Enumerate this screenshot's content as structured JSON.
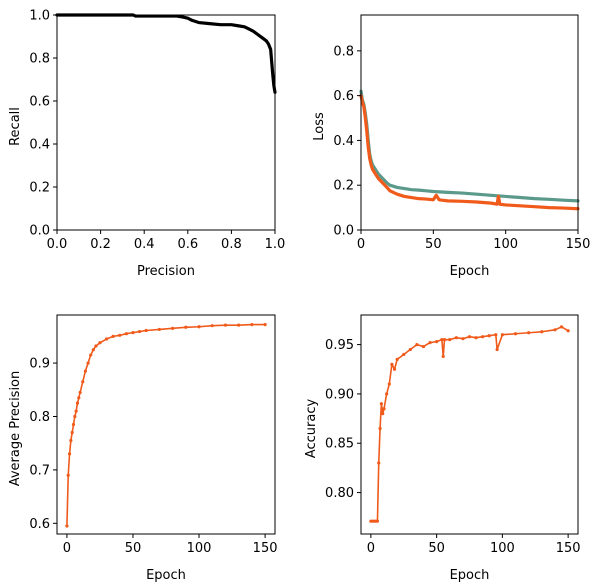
{
  "chart_data": [
    {
      "type": "line",
      "xlabel": "Precision",
      "ylabel": "Recall",
      "xlim": [
        0,
        1
      ],
      "ylim": [
        0,
        1
      ],
      "xticks": [
        0.0,
        0.2,
        0.4,
        0.6,
        0.8,
        1.0
      ],
      "yticks": [
        0.0,
        0.2,
        0.4,
        0.6,
        0.8,
        1.0
      ],
      "xtick_labels": [
        "0.0",
        "0.2",
        "0.4",
        "0.6",
        "0.8",
        "1.0"
      ],
      "ytick_labels": [
        "0.0",
        "0.2",
        "0.4",
        "0.6",
        "0.8",
        "1.0"
      ],
      "grid": false,
      "series": [
        {
          "color": "#000000",
          "x": [
            0.0,
            0.05,
            0.1,
            0.15,
            0.2,
            0.25,
            0.3,
            0.35,
            0.36,
            0.4,
            0.45,
            0.5,
            0.55,
            0.58,
            0.6,
            0.62,
            0.65,
            0.7,
            0.75,
            0.8,
            0.83,
            0.86,
            0.88,
            0.9,
            0.92,
            0.94,
            0.96,
            0.97,
            0.98,
            0.985,
            0.99,
            0.995,
            1.0
          ],
          "y": [
            1.0,
            1.0,
            1.0,
            1.0,
            1.0,
            1.0,
            1.0,
            1.0,
            0.995,
            0.995,
            0.995,
            0.995,
            0.995,
            0.99,
            0.985,
            0.975,
            0.965,
            0.96,
            0.955,
            0.955,
            0.95,
            0.945,
            0.935,
            0.925,
            0.91,
            0.895,
            0.88,
            0.865,
            0.84,
            0.78,
            0.72,
            0.67,
            0.64
          ]
        }
      ]
    },
    {
      "type": "line",
      "xlabel": "Epoch",
      "ylabel": "Loss",
      "xlim": [
        0,
        150
      ],
      "ylim": [
        0,
        0.96
      ],
      "xticks": [
        0,
        50,
        100,
        150
      ],
      "yticks": [
        0.0,
        0.2,
        0.4,
        0.6,
        0.8
      ],
      "xtick_labels": [
        "0",
        "50",
        "100",
        "150"
      ],
      "ytick_labels": [
        "0.0",
        "0.2",
        "0.4",
        "0.6",
        "0.8"
      ],
      "grid": false,
      "series": [
        {
          "color": "#5b9a8b",
          "x": [
            0,
            1,
            2,
            3,
            4,
            5,
            6,
            7,
            8,
            10,
            12,
            15,
            18,
            20,
            25,
            30,
            35,
            40,
            45,
            50,
            60,
            70,
            80,
            90,
            100,
            110,
            120,
            130,
            140,
            150
          ],
          "y": [
            0.62,
            0.58,
            0.56,
            0.52,
            0.47,
            0.4,
            0.34,
            0.31,
            0.29,
            0.27,
            0.25,
            0.23,
            0.21,
            0.2,
            0.19,
            0.185,
            0.18,
            0.178,
            0.175,
            0.172,
            0.168,
            0.165,
            0.16,
            0.155,
            0.15,
            0.145,
            0.14,
            0.137,
            0.133,
            0.13
          ]
        },
        {
          "color": "#f05a1a",
          "x": [
            0,
            1,
            2,
            3,
            4,
            5,
            6,
            7,
            8,
            10,
            12,
            15,
            18,
            20,
            25,
            30,
            35,
            40,
            45,
            50,
            52,
            54,
            56,
            60,
            70,
            80,
            90,
            94,
            95,
            96,
            100,
            110,
            120,
            130,
            140,
            150
          ],
          "y": [
            0.6,
            0.57,
            0.55,
            0.5,
            0.44,
            0.37,
            0.32,
            0.29,
            0.27,
            0.25,
            0.23,
            0.21,
            0.19,
            0.175,
            0.16,
            0.15,
            0.145,
            0.14,
            0.138,
            0.135,
            0.155,
            0.135,
            0.133,
            0.13,
            0.128,
            0.125,
            0.12,
            0.115,
            0.15,
            0.115,
            0.112,
            0.108,
            0.104,
            0.1,
            0.098,
            0.095
          ]
        }
      ]
    },
    {
      "type": "line",
      "xlabel": "Epoch",
      "ylabel": "Average Precision",
      "xlim": [
        -7.5,
        157.5
      ],
      "ylim": [
        0.58,
        0.99
      ],
      "xticks": [
        0,
        50,
        100,
        150
      ],
      "yticks": [
        0.6,
        0.7,
        0.8,
        0.9
      ],
      "xtick_labels": [
        "0",
        "50",
        "100",
        "150"
      ],
      "ytick_labels": [
        "0.6",
        "0.7",
        "0.8",
        "0.9"
      ],
      "grid": false,
      "series": [
        {
          "color": "#f05a1a",
          "marker": "dot",
          "x": [
            0,
            1,
            2,
            3,
            4,
            5,
            6,
            7,
            8,
            9,
            10,
            12,
            14,
            16,
            18,
            20,
            22,
            25,
            30,
            35,
            40,
            45,
            50,
            55,
            60,
            70,
            80,
            90,
            100,
            110,
            120,
            130,
            140,
            150
          ],
          "y": [
            0.595,
            0.69,
            0.73,
            0.755,
            0.77,
            0.785,
            0.8,
            0.81,
            0.825,
            0.835,
            0.845,
            0.865,
            0.885,
            0.9,
            0.915,
            0.925,
            0.932,
            0.938,
            0.945,
            0.95,
            0.952,
            0.955,
            0.957,
            0.959,
            0.961,
            0.963,
            0.965,
            0.967,
            0.968,
            0.97,
            0.971,
            0.971,
            0.972,
            0.972
          ]
        }
      ]
    },
    {
      "type": "line",
      "xlabel": "Epoch",
      "ylabel": "Accuracy",
      "xlim": [
        -7.5,
        157.5
      ],
      "ylim": [
        0.758,
        0.98
      ],
      "xticks": [
        0,
        50,
        100,
        150
      ],
      "yticks": [
        0.8,
        0.85,
        0.9,
        0.95
      ],
      "xtick_labels": [
        "0",
        "50",
        "100",
        "150"
      ],
      "ytick_labels": [
        "0.80",
        "0.85",
        "0.90",
        "0.95"
      ],
      "grid": false,
      "series": [
        {
          "color": "#f05a1a",
          "marker": "dot",
          "x": [
            0,
            1,
            2,
            3,
            4,
            5,
            6,
            7,
            8,
            9,
            10,
            12,
            14,
            16,
            18,
            20,
            25,
            30,
            35,
            40,
            45,
            50,
            54,
            55,
            56,
            60,
            65,
            70,
            75,
            80,
            85,
            90,
            95,
            96,
            100,
            110,
            120,
            130,
            140,
            145,
            150
          ],
          "y": [
            0.771,
            0.771,
            0.771,
            0.771,
            0.771,
            0.771,
            0.83,
            0.865,
            0.89,
            0.88,
            0.885,
            0.9,
            0.91,
            0.93,
            0.925,
            0.935,
            0.94,
            0.945,
            0.95,
            0.948,
            0.952,
            0.953,
            0.955,
            0.938,
            0.955,
            0.955,
            0.957,
            0.956,
            0.958,
            0.957,
            0.958,
            0.959,
            0.96,
            0.945,
            0.96,
            0.961,
            0.962,
            0.963,
            0.965,
            0.968,
            0.964
          ]
        }
      ]
    }
  ]
}
